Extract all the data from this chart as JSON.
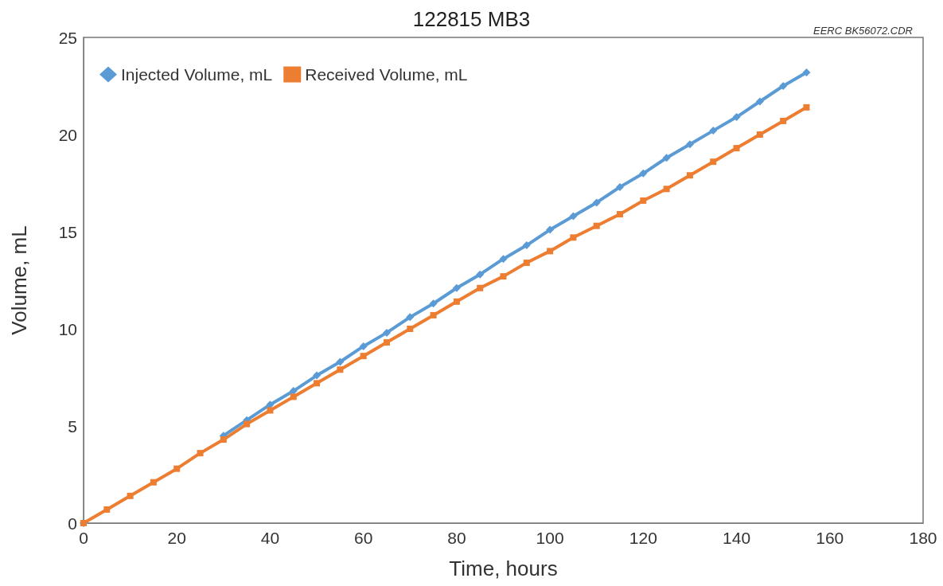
{
  "chart_data": {
    "type": "line",
    "title": "122815 MB3",
    "xlabel": "Time, hours",
    "ylabel": "Volume, mL",
    "annotations": [
      "EERC BK56072.CDR"
    ],
    "x": [
      0,
      5,
      10,
      15,
      20,
      25,
      30,
      35,
      40,
      45,
      50,
      55,
      60,
      65,
      70,
      75,
      80,
      85,
      90,
      95,
      100,
      105,
      110,
      115,
      120,
      125,
      130,
      135,
      140,
      145,
      150,
      155
    ],
    "series": [
      {
        "name": "Injected Volume, mL",
        "color": "#5b9bd5",
        "marker": "diamond",
        "values": [
          0,
          null,
          null,
          null,
          null,
          null,
          4.5,
          5.3,
          6.1,
          6.8,
          7.6,
          8.3,
          9.1,
          9.8,
          10.6,
          11.3,
          12.1,
          12.8,
          13.6,
          14.3,
          15.1,
          15.8,
          16.5,
          17.3,
          18.0,
          18.8,
          19.5,
          20.2,
          20.9,
          21.7,
          22.5,
          23.2
        ]
      },
      {
        "name": "Received Volume, mL",
        "color": "#ed7d31",
        "marker": "square",
        "values": [
          0,
          0.7,
          1.4,
          2.1,
          2.8,
          3.6,
          4.3,
          5.1,
          5.8,
          6.5,
          7.2,
          7.9,
          8.6,
          9.3,
          10.0,
          10.7,
          11.4,
          12.1,
          12.7,
          13.4,
          14.0,
          14.7,
          15.3,
          15.9,
          16.6,
          17.2,
          17.9,
          18.6,
          19.3,
          20.0,
          20.7,
          21.4
        ]
      }
    ],
    "xlim": [
      0,
      180
    ],
    "xticks": [
      0,
      20,
      40,
      60,
      80,
      100,
      120,
      140,
      160,
      180
    ],
    "ylim": [
      0,
      25
    ],
    "yticks": [
      0,
      5,
      10,
      15,
      20,
      25
    ],
    "grid": false,
    "legend": "top left"
  }
}
